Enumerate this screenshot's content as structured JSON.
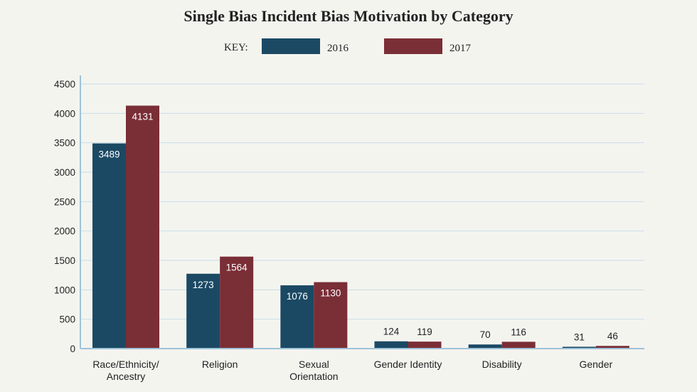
{
  "chart_data": {
    "type": "bar",
    "title": "Single Bias Incident Bias Motivation by Category",
    "legend_key_label": "KEY:",
    "categories": [
      [
        "Race/Ethnicity/",
        "Ancestry"
      ],
      [
        "Religion"
      ],
      [
        "Sexual",
        "Orientation"
      ],
      [
        "Gender Identity"
      ],
      [
        "Disability"
      ],
      [
        "Gender"
      ]
    ],
    "series": [
      {
        "name": "2016",
        "color": "#1b4964",
        "values": [
          3489,
          1273,
          1076,
          124,
          70,
          31
        ]
      },
      {
        "name": "2017",
        "color": "#7a2e36",
        "values": [
          4131,
          1564,
          1130,
          119,
          116,
          46
        ]
      }
    ],
    "ylim": [
      0,
      4500
    ],
    "yticks": [
      0,
      500,
      1000,
      1500,
      2000,
      2500,
      3000,
      3500,
      4000,
      4500
    ],
    "xlabel": "",
    "ylabel": "",
    "grid": true,
    "legend_position": "top-center",
    "colors": {
      "grid": "#c9dde8",
      "axis": "#9ec3d8",
      "background": "#f4f4ef"
    }
  }
}
